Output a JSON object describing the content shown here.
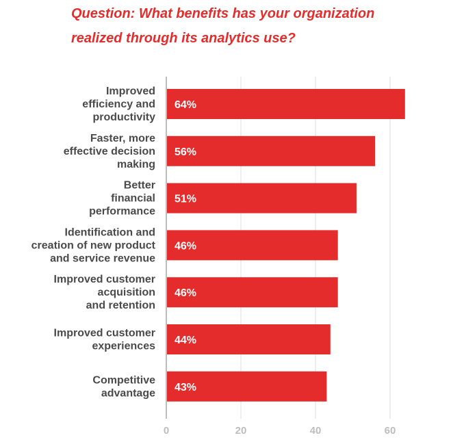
{
  "chart_data": {
    "type": "bar",
    "orientation": "horizontal",
    "title_lines": [
      "Question: What benefits has your organization",
      "realized through its analytics use?"
    ],
    "categories": [
      [
        "Improved",
        "efficiency and",
        "productivity"
      ],
      [
        "Faster, more",
        "effective decision",
        "making"
      ],
      [
        "Better",
        "financial",
        "performance"
      ],
      [
        "Identification and",
        "creation of new product",
        "and service revenue"
      ],
      [
        "Improved customer",
        "acquisition",
        "and retention"
      ],
      [
        "Improved customer",
        "experiences"
      ],
      [
        "Competitive",
        "advantage"
      ]
    ],
    "values": [
      64,
      56,
      51,
      46,
      46,
      44,
      43
    ],
    "value_labels": [
      "64%",
      "56%",
      "51%",
      "46%",
      "46%",
      "44%",
      "43%"
    ],
    "x_ticks": [
      0,
      20,
      40,
      60
    ],
    "xlim": [
      0,
      64
    ],
    "grid": "vertical",
    "bar_color": "#e52c2c",
    "title_color": "#e52c2c"
  }
}
